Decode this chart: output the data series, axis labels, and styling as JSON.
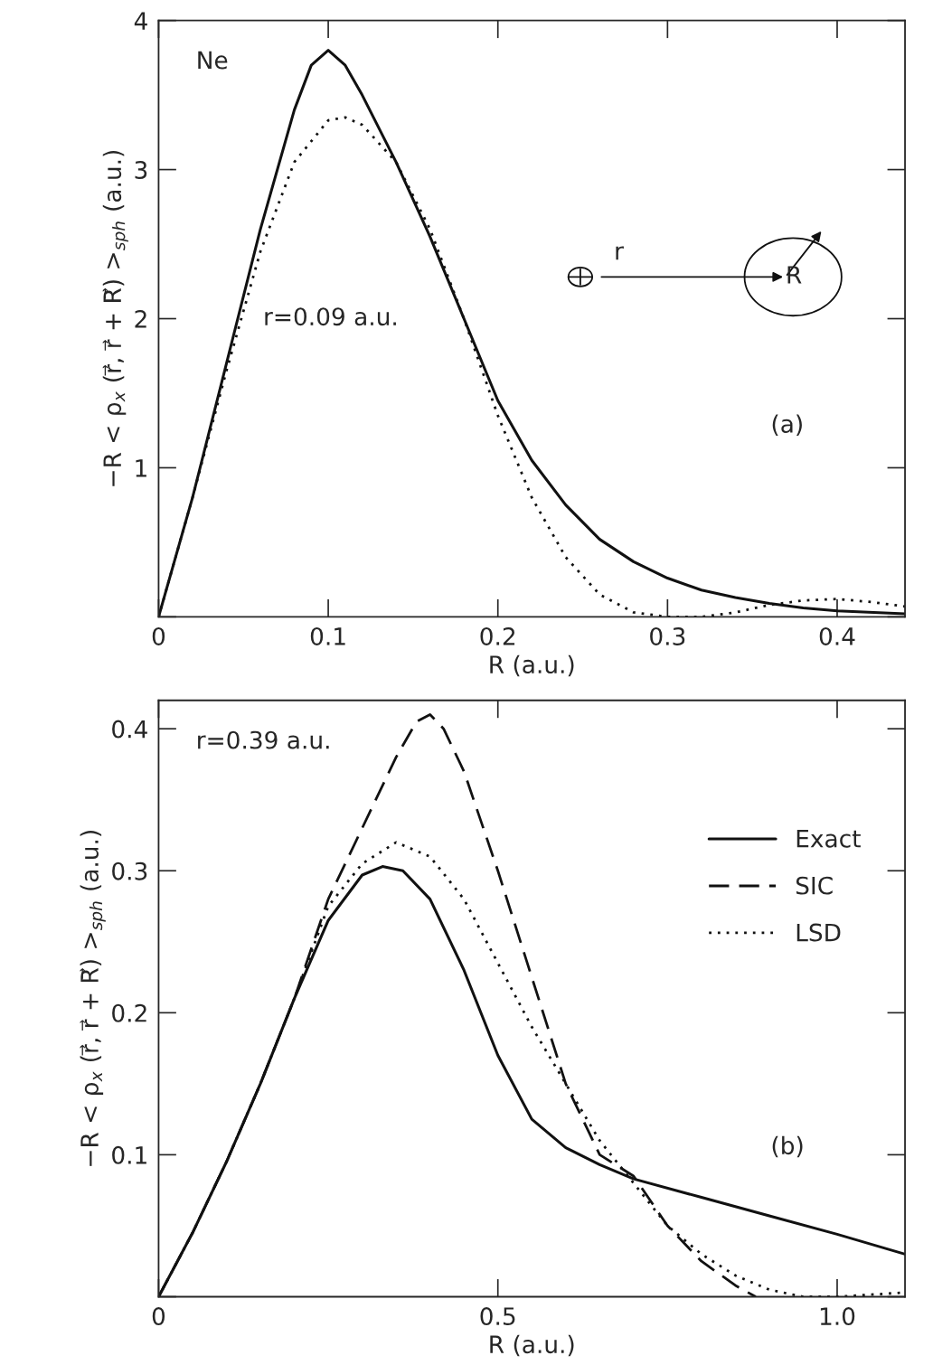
{
  "chart_data": [
    {
      "type": "line",
      "xlabel": "R (a.u.)",
      "ylabel": "−R < ρ$_{x}$ (r⃗, r⃗ + R⃗) >$_{sph}$ (a.u.)",
      "xlim": [
        0,
        0.44
      ],
      "ylim": [
        0,
        4
      ],
      "xticks": [
        0,
        0.1,
        0.2,
        0.3,
        0.4
      ],
      "yticks": [
        {
          "value": 0,
          "label": null
        },
        1,
        2,
        3,
        4
      ],
      "annotations": [
        "Ne",
        "r=0.09 a.u.",
        "(a)",
        "r",
        "R"
      ],
      "series": [
        {
          "color": "#111111",
          "line_style": "solid",
          "x": [
            0,
            0.02,
            0.04,
            0.06,
            0.08,
            0.09,
            0.1,
            0.11,
            0.12,
            0.14,
            0.16,
            0.18,
            0.2,
            0.22,
            0.24,
            0.26,
            0.28,
            0.3,
            0.32,
            0.34,
            0.36,
            0.38,
            0.4,
            0.44
          ],
          "values": [
            0,
            0.8,
            1.7,
            2.6,
            3.4,
            3.7,
            3.8,
            3.7,
            3.5,
            3.05,
            2.55,
            2.0,
            1.45,
            1.05,
            0.75,
            0.52,
            0.37,
            0.26,
            0.18,
            0.13,
            0.09,
            0.06,
            0.04,
            0.02
          ]
        },
        {
          "color": "#111111",
          "line_style": "dotted",
          "x": [
            0,
            0.02,
            0.04,
            0.06,
            0.08,
            0.1,
            0.11,
            0.12,
            0.14,
            0.16,
            0.18,
            0.2,
            0.22,
            0.24,
            0.26,
            0.28,
            0.3,
            0.32,
            0.34,
            0.36,
            0.38,
            0.4,
            0.42,
            0.44
          ],
          "values": [
            0,
            0.8,
            1.65,
            2.45,
            3.05,
            3.33,
            3.35,
            3.3,
            3.05,
            2.6,
            2.0,
            1.35,
            0.8,
            0.4,
            0.15,
            0.03,
            0.0,
            0.0,
            0.03,
            0.08,
            0.11,
            0.12,
            0.1,
            0.07
          ]
        }
      ]
    },
    {
      "type": "line",
      "xlabel": "R (a.u.)",
      "ylabel": "−R < ρ$_{x}$ (r⃗, r⃗ + R⃗) >$_{sph}$ (a.u.)",
      "xlim": [
        0,
        1.1
      ],
      "ylim": [
        0,
        0.42
      ],
      "xticks": [
        0,
        0.5,
        {
          "value": 1.0,
          "label": "1.0"
        }
      ],
      "yticks": [
        {
          "value": 0,
          "label": null
        },
        0.1,
        0.2,
        0.3,
        0.4
      ],
      "annotations": [
        "r=0.39 a.u.",
        "(b)"
      ],
      "legend": "top right",
      "series": [
        {
          "name": "Exact",
          "color": "#111111",
          "line_style": "solid",
          "x": [
            0,
            0.05,
            0.1,
            0.15,
            0.2,
            0.25,
            0.3,
            0.33,
            0.36,
            0.4,
            0.45,
            0.5,
            0.55,
            0.6,
            0.65,
            0.7,
            0.8,
            0.9,
            1.0,
            1.1
          ],
          "values": [
            0,
            0.045,
            0.095,
            0.15,
            0.21,
            0.265,
            0.297,
            0.303,
            0.3,
            0.28,
            0.23,
            0.17,
            0.125,
            0.105,
            0.093,
            0.083,
            0.07,
            0.057,
            0.044,
            0.03
          ]
        },
        {
          "name": "SIC",
          "color": "#111111",
          "line_style": "dashed",
          "x": [
            0,
            0.05,
            0.1,
            0.15,
            0.2,
            0.25,
            0.3,
            0.35,
            0.38,
            0.4,
            0.42,
            0.45,
            0.5,
            0.55,
            0.6,
            0.65,
            0.7,
            0.75,
            0.8,
            0.85,
            0.88
          ],
          "values": [
            0,
            0.045,
            0.095,
            0.15,
            0.21,
            0.28,
            0.33,
            0.38,
            0.405,
            0.41,
            0.4,
            0.37,
            0.3,
            0.225,
            0.15,
            0.1,
            0.085,
            0.05,
            0.025,
            0.008,
            0.0
          ]
        },
        {
          "name": "LSD",
          "color": "#111111",
          "line_style": "dotted",
          "x": [
            0,
            0.05,
            0.1,
            0.15,
            0.2,
            0.25,
            0.3,
            0.35,
            0.4,
            0.45,
            0.5,
            0.55,
            0.6,
            0.65,
            0.7,
            0.75,
            0.8,
            0.85,
            0.9,
            0.95,
            1.0,
            1.1
          ],
          "values": [
            0,
            0.045,
            0.095,
            0.15,
            0.21,
            0.275,
            0.305,
            0.32,
            0.31,
            0.28,
            0.235,
            0.19,
            0.15,
            0.11,
            0.08,
            0.05,
            0.03,
            0.015,
            0.005,
            0.0,
            0.0,
            0.003
          ]
        }
      ]
    }
  ]
}
